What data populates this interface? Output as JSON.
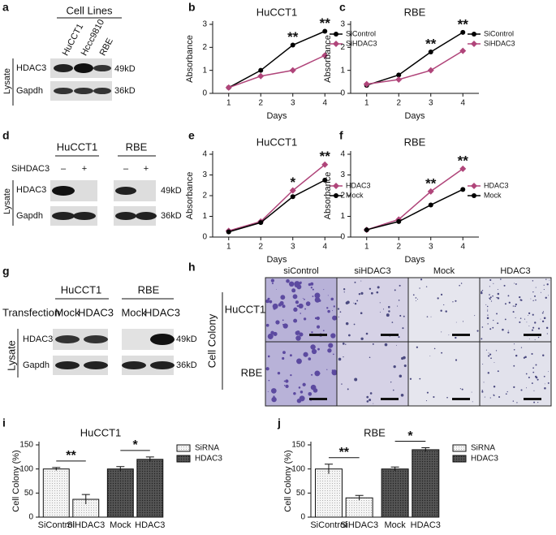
{
  "panel_labels": [
    "a",
    "b",
    "c",
    "d",
    "e",
    "f",
    "g",
    "h",
    "i",
    "j"
  ],
  "panel_a": {
    "header": "Cell Lines",
    "lanes": [
      "HuCCT1",
      "Hccc9810",
      "RBE"
    ],
    "group": "Lysate",
    "rows": [
      "HDAC3",
      "Gapdh"
    ],
    "sizes": [
      "49kD",
      "36kD"
    ]
  },
  "panel_d": {
    "cells": [
      "HuCCT1",
      "RBE"
    ],
    "treatment": "SiHDAC3",
    "lanes": [
      "–",
      "+",
      "–",
      "+"
    ],
    "group": "Lysate",
    "rows": [
      "HDAC3",
      "Gapdh"
    ],
    "sizes": [
      "49kD",
      "36kD"
    ]
  },
  "panel_g": {
    "cells": [
      "HuCCT1",
      "RBE"
    ],
    "treatment": "Transfection",
    "lanes": [
      "Mock",
      "HDAC3",
      "Mock",
      "HDAC3"
    ],
    "group": "Lysate",
    "rows": [
      "HDAC3",
      "Gapdh"
    ],
    "sizes": [
      "49kD",
      "36kD"
    ]
  },
  "panel_h": {
    "columns": [
      "siControl",
      "siHDAC3",
      "Mock",
      "HDAC3"
    ],
    "rows": [
      "HuCCT1",
      "RBE"
    ],
    "label": "Cell Colony"
  },
  "chart_data": [
    {
      "type": "line",
      "title": "HuCCT1",
      "x_label": "Days",
      "y_label": "Absorbance",
      "x": [
        1,
        2,
        3,
        4
      ],
      "xlim": [
        0.5,
        4.5
      ],
      "xticks": [
        1,
        2,
        3,
        4
      ],
      "ylim": [
        0,
        3
      ],
      "yticks": [
        0,
        1,
        2,
        3
      ],
      "legend": "upper right",
      "series": [
        {
          "name": "SiControl",
          "color": "#000000",
          "marker": "circle",
          "values": [
            0.25,
            1.0,
            2.1,
            2.7
          ]
        },
        {
          "name": "SiHDAC3",
          "color": "#b0457a",
          "marker": "diamond",
          "values": [
            0.25,
            0.75,
            1.0,
            1.65
          ]
        }
      ],
      "annotations": [
        {
          "text": "**",
          "x": 3,
          "color": "#000000"
        },
        {
          "text": "**",
          "x": 4,
          "color": "#000000"
        }
      ]
    },
    {
      "type": "line",
      "title": "RBE",
      "x_label": "Days",
      "y_label": "Absorbance",
      "x": [
        1,
        2,
        3,
        4
      ],
      "xlim": [
        0.5,
        4.5
      ],
      "xticks": [
        1,
        2,
        3,
        4
      ],
      "ylim": [
        0,
        3
      ],
      "yticks": [
        0,
        1,
        2,
        3
      ],
      "legend": "upper right",
      "series": [
        {
          "name": "SiControl",
          "color": "#000000",
          "marker": "circle",
          "values": [
            0.35,
            0.8,
            1.8,
            2.65
          ]
        },
        {
          "name": "SiHDAC3",
          "color": "#b0457a",
          "marker": "diamond",
          "values": [
            0.4,
            0.6,
            1.0,
            1.85
          ]
        }
      ],
      "annotations": [
        {
          "text": "**",
          "x": 3,
          "color": "#000000"
        },
        {
          "text": "**",
          "x": 4,
          "color": "#000000"
        }
      ]
    },
    {
      "type": "line",
      "title": "HuCCT1",
      "x_label": "Days",
      "y_label": "Absorbance",
      "x": [
        1,
        2,
        3,
        4
      ],
      "xlim": [
        0.5,
        4.5
      ],
      "xticks": [
        1,
        2,
        3,
        4
      ],
      "ylim": [
        0,
        4
      ],
      "yticks": [
        0,
        1,
        2,
        3,
        4
      ],
      "legend": "center right",
      "series": [
        {
          "name": "HDAC3",
          "color": "#b0457a",
          "marker": "diamond",
          "values": [
            0.3,
            0.75,
            2.25,
            3.5
          ]
        },
        {
          "name": "Mock",
          "color": "#000000",
          "marker": "circle",
          "values": [
            0.25,
            0.7,
            1.95,
            2.75
          ]
        }
      ],
      "annotations": [
        {
          "text": "*",
          "x": 3,
          "color": "#b0457a"
        },
        {
          "text": "**",
          "x": 4,
          "color": "#b0457a"
        }
      ]
    },
    {
      "type": "line",
      "title": "RBE",
      "x_label": "Days",
      "y_label": "Absorbance",
      "x": [
        1,
        2,
        3,
        4
      ],
      "xlim": [
        0.5,
        4.5
      ],
      "xticks": [
        1,
        2,
        3,
        4
      ],
      "ylim": [
        0,
        4
      ],
      "yticks": [
        0,
        1,
        2,
        3,
        4
      ],
      "legend": "center right",
      "series": [
        {
          "name": "HDAC3",
          "color": "#b0457a",
          "marker": "diamond",
          "values": [
            0.35,
            0.85,
            2.2,
            3.3
          ]
        },
        {
          "name": "Mock",
          "color": "#000000",
          "marker": "circle",
          "values": [
            0.35,
            0.75,
            1.55,
            2.3
          ]
        }
      ],
      "annotations": [
        {
          "text": "**",
          "x": 3,
          "color": "#b0457a"
        },
        {
          "text": "**",
          "x": 4,
          "color": "#b0457a"
        }
      ]
    },
    {
      "type": "bar",
      "title": "HuCCT1",
      "y_label": "Cell Colony (%)",
      "categories": [
        "SiControl",
        "SiHDAC3",
        "Mock",
        "HDAC3"
      ],
      "ylim": [
        0,
        150
      ],
      "yticks": [
        0,
        50,
        100,
        150
      ],
      "legend": "outside right",
      "series": [
        {
          "name": "SiRNA",
          "color": "#f2f2f2",
          "values": [
            100,
            37,
            null,
            null
          ],
          "errors": [
            3,
            10,
            null,
            null
          ]
        },
        {
          "name": "HDAC3",
          "color": "#4a4a4a",
          "values": [
            null,
            null,
            100,
            120
          ],
          "errors": [
            null,
            null,
            5,
            5
          ]
        }
      ],
      "annotations": [
        "**",
        "*"
      ]
    },
    {
      "type": "bar",
      "title": "RBE",
      "y_label": "Cell Colony (%)",
      "categories": [
        "SiControl",
        "SiHDAC3",
        "Mock",
        "HDAC3"
      ],
      "ylim": [
        0,
        150
      ],
      "yticks": [
        0,
        50,
        100,
        150
      ],
      "legend": "outside right",
      "series": [
        {
          "name": "SiRNA",
          "color": "#f2f2f2",
          "values": [
            100,
            40,
            null,
            null
          ],
          "errors": [
            10,
            5,
            null,
            null
          ]
        },
        {
          "name": "HDAC3",
          "color": "#4a4a4a",
          "values": [
            null,
            null,
            100,
            140
          ],
          "errors": [
            null,
            null,
            4,
            4
          ]
        }
      ],
      "annotations": [
        "**",
        "*"
      ]
    }
  ]
}
